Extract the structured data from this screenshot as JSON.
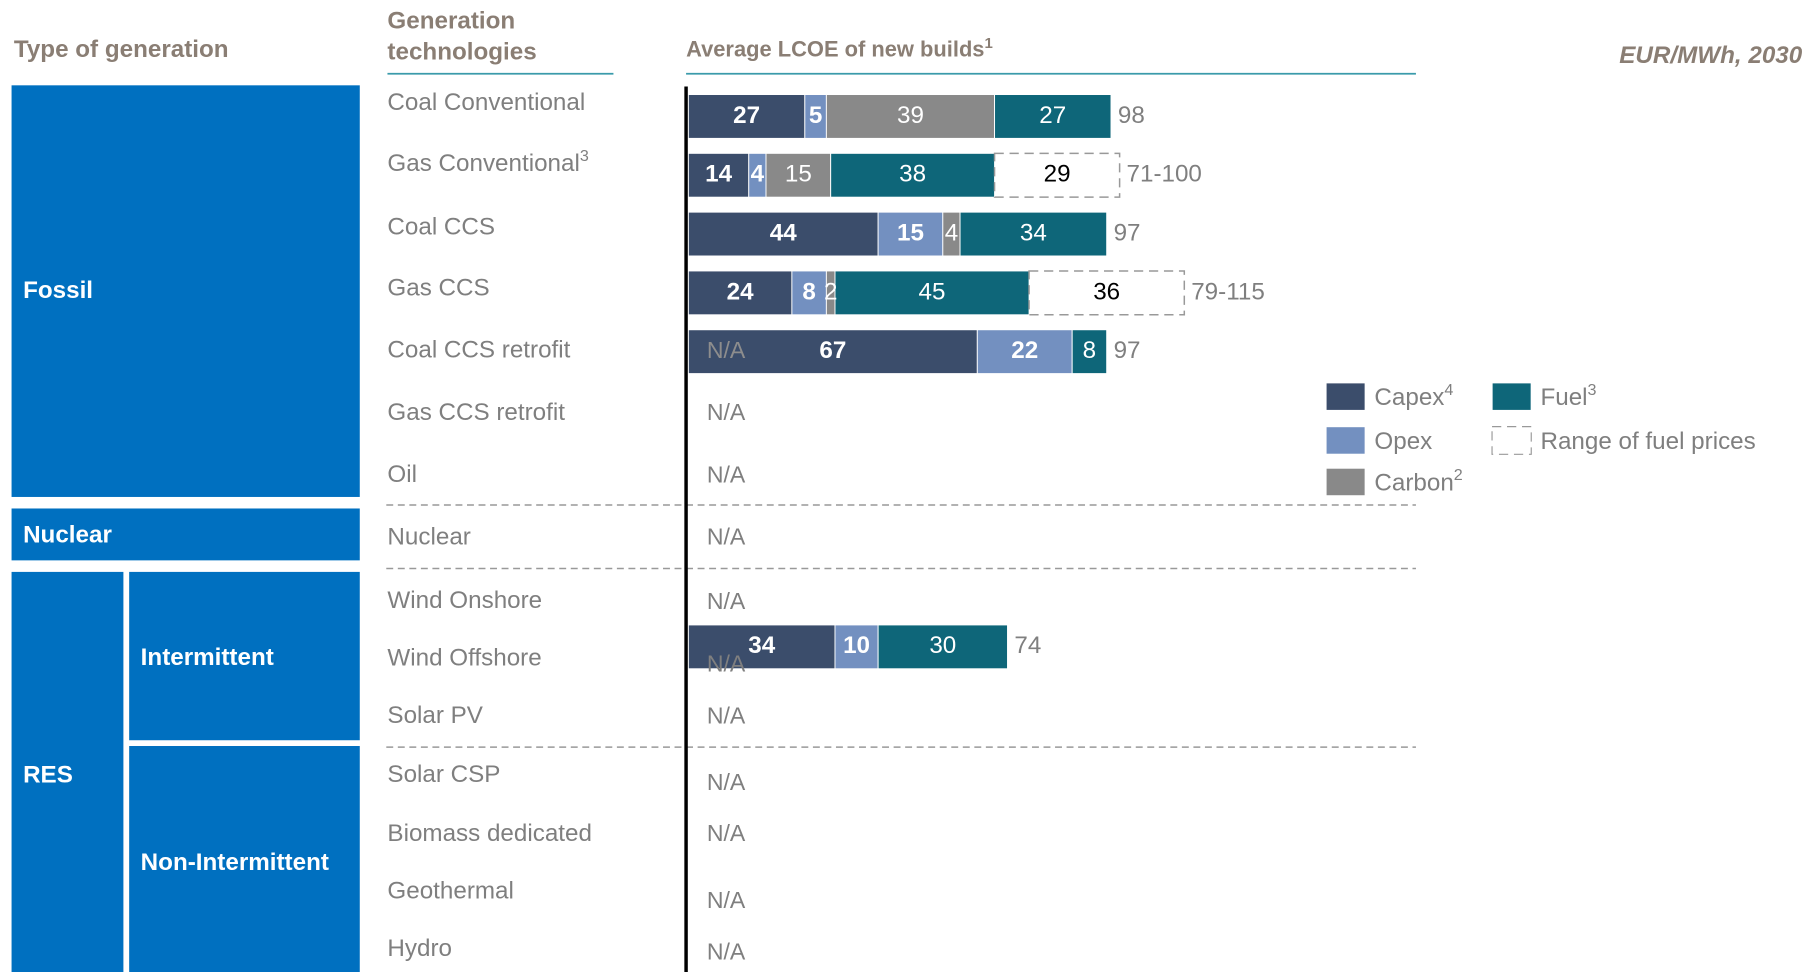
{
  "chart_data": {
    "type": "stacked-bar",
    "title": "Average LCOE of new builds",
    "title_footnote": "1",
    "unit_label": "EUR/MWh, 2030",
    "type_header": "Type of generation",
    "tech_header": [
      "Generation",
      "technologies"
    ],
    "groups": [
      "Fossil",
      "Nuclear",
      "RES"
    ],
    "subgroups": [
      "Intermittent",
      "Non-Intermittent"
    ],
    "categories": [
      "Coal Conventional",
      "Gas Conventional",
      "Coal CCS",
      "Gas CCS",
      "Coal CCS retrofit",
      "Gas CCS retrofit",
      "Oil",
      "Nuclear",
      "Wind Onshore",
      "Wind Offshore",
      "Solar PV",
      "Solar CSP",
      "Biomass dedicated",
      "Geothermal",
      "Hydro"
    ],
    "category_footnotes": [
      null,
      "3",
      null,
      null,
      null,
      null,
      null,
      null,
      null,
      null,
      null,
      null,
      null,
      null,
      null
    ],
    "status": [
      null,
      null,
      null,
      null,
      "N/A",
      "N/A",
      "N/A",
      "N/A",
      "N/A",
      "N/A",
      "N/A",
      "N/A",
      "N/A",
      "N/A",
      "N/A"
    ],
    "total_labels": [
      "98",
      "71-100",
      "97",
      "79-115",
      "97",
      null,
      null,
      null,
      null,
      "74",
      null,
      null,
      null,
      null,
      null
    ],
    "series": [
      {
        "name": "Capex",
        "footnote": "4",
        "color": "#3b4d6b",
        "label_color": "#ffffff",
        "label_bold": true,
        "values": [
          27,
          14,
          44,
          24,
          67,
          null,
          null,
          null,
          null,
          34,
          null,
          null,
          null,
          null,
          null
        ]
      },
      {
        "name": "Opex",
        "color": "#7390c0",
        "label_color": "#ffffff",
        "label_bold": true,
        "values": [
          5,
          4,
          15,
          8,
          22,
          null,
          null,
          null,
          null,
          10,
          null,
          null,
          null,
          null,
          null
        ]
      },
      {
        "name": "Carbon",
        "footnote": "2",
        "color": "#898989",
        "label_color": "#ffffff",
        "label_bold": false,
        "values": [
          39,
          15,
          4,
          2,
          null,
          null,
          null,
          null,
          null,
          null,
          null,
          null,
          null,
          null,
          null
        ]
      },
      {
        "name": "Fuel",
        "footnote": "3",
        "color": "#0e6679",
        "label_color": "#ffffff",
        "label_bold": false,
        "values": [
          27,
          38,
          34,
          45,
          8,
          null,
          null,
          null,
          null,
          30,
          null,
          null,
          null,
          null,
          null
        ]
      },
      {
        "name": "Range of fuel prices",
        "color": "#ffffff",
        "dashed": true,
        "label_color": "#000000",
        "label_bold": false,
        "values": [
          null,
          29,
          null,
          36,
          null,
          null,
          null,
          null,
          null,
          null,
          null,
          null,
          null,
          null,
          null
        ]
      }
    ]
  }
}
